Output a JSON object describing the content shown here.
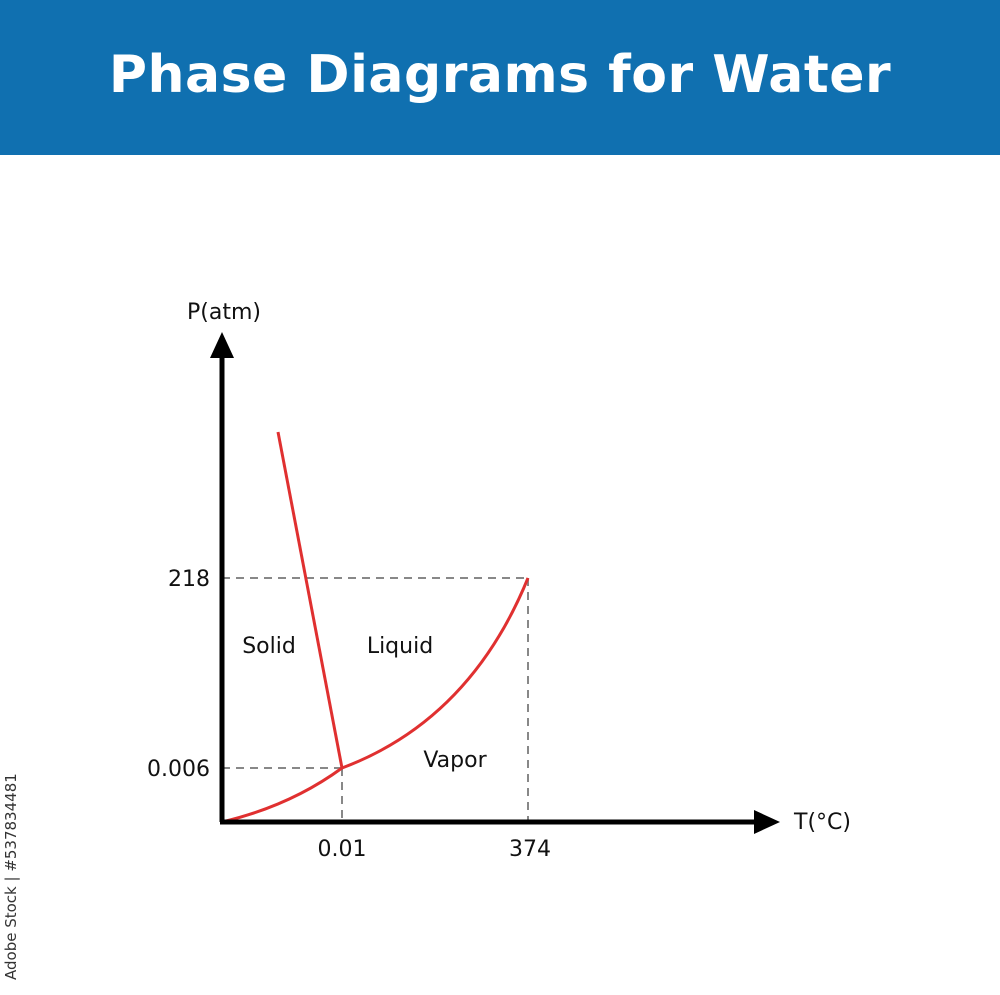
{
  "header": {
    "title": "Phase Diagrams for Water",
    "background_color": "#1070b0",
    "text_color": "#ffffff"
  },
  "diagram": {
    "y_axis_label": "P(atm)",
    "x_axis_label": "T(°C)",
    "y_ticks": [
      "218",
      "0.006"
    ],
    "x_ticks": [
      "0.01",
      "374"
    ],
    "regions": {
      "solid": "Solid",
      "liquid": "Liquid",
      "vapor": "Vapor"
    },
    "curve_color": "#e03030",
    "axis_color": "#000000",
    "guide_color": "#888888"
  },
  "watermark": {
    "text": "Adobe Stock | #537834481"
  }
}
